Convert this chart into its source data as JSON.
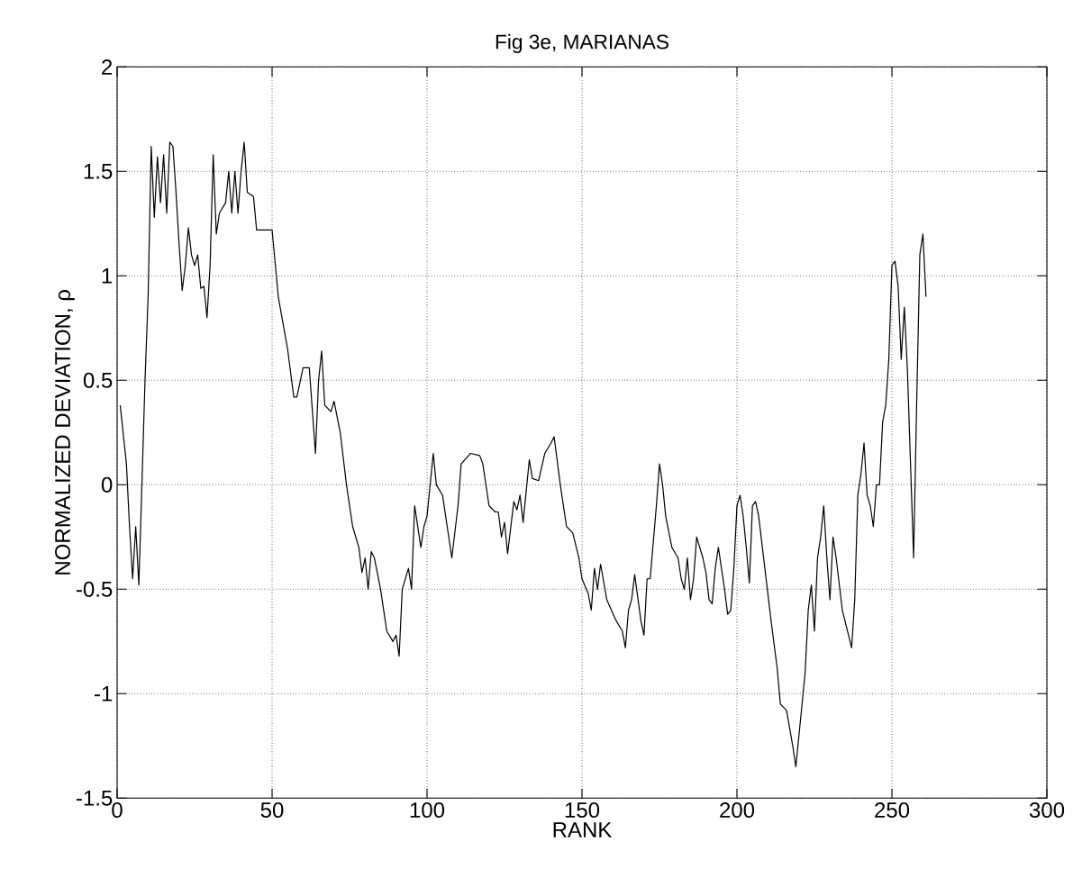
{
  "chart_data": {
    "type": "line",
    "title": "Fig 3e, MARIANAS",
    "xlabel": "RANK",
    "ylabel": "NORMALIZED DEVIATION, ρ",
    "color": "#000000",
    "grid": true,
    "line_style": "solid",
    "xlim": [
      0,
      300
    ],
    "ylim": [
      -1.5,
      2
    ],
    "xticks": [
      0,
      50,
      100,
      150,
      200,
      250,
      300
    ],
    "yticks": [
      -1.5,
      -1,
      -0.5,
      0,
      0.5,
      1,
      1.5,
      2
    ],
    "x": [
      1,
      3,
      4,
      5,
      6,
      7,
      8,
      9,
      10,
      11,
      12,
      13,
      14,
      15,
      16,
      17,
      18,
      19,
      20,
      21,
      22,
      23,
      24,
      25,
      26,
      27,
      28,
      29,
      30,
      31,
      32,
      33,
      35,
      36,
      37,
      38,
      39,
      40,
      41,
      42,
      44,
      45,
      48,
      50,
      52,
      55,
      57,
      58,
      60,
      62,
      64,
      65,
      66,
      67,
      69,
      70,
      72,
      74,
      76,
      78,
      79,
      80,
      81,
      82,
      83,
      85,
      87,
      89,
      90,
      91,
      92,
      94,
      95,
      96,
      98,
      99,
      100,
      102,
      103,
      105,
      107,
      108,
      110,
      111,
      114,
      117,
      118,
      120,
      122,
      123,
      124,
      125,
      126,
      128,
      129,
      130,
      131,
      133,
      134,
      136,
      138,
      140,
      141,
      143,
      145,
      147,
      149,
      150,
      152,
      153,
      154,
      155,
      156,
      158,
      161,
      163,
      164,
      165,
      166,
      167,
      169,
      170,
      171,
      172,
      174,
      175,
      176,
      177,
      179,
      181,
      182,
      183,
      184,
      185,
      186,
      187,
      189,
      190,
      191,
      192,
      193,
      194,
      196,
      197,
      198,
      199,
      200,
      201,
      202,
      203,
      204,
      205,
      206,
      207,
      209,
      211,
      213,
      214,
      216,
      218,
      219,
      220,
      221,
      222,
      223,
      224,
      225,
      226,
      227,
      228,
      229,
      230,
      231,
      232,
      234,
      236,
      237,
      238,
      239,
      240,
      241,
      242,
      243,
      244,
      245,
      246,
      247,
      248,
      249,
      250,
      251,
      252,
      253,
      254,
      255,
      256,
      257,
      258,
      259,
      260,
      261
    ],
    "values": [
      0.38,
      0.1,
      -0.2,
      -0.45,
      -0.2,
      -0.48,
      0,
      0.5,
      0.9,
      1.62,
      1.28,
      1.57,
      1.35,
      1.58,
      1.3,
      1.64,
      1.62,
      1.4,
      1.15,
      0.93,
      1.05,
      1.23,
      1.1,
      1.05,
      1.1,
      0.94,
      0.95,
      0.8,
      1.05,
      1.58,
      1.2,
      1.3,
      1.35,
      1.5,
      1.3,
      1.5,
      1.3,
      1.5,
      1.64,
      1.4,
      1.38,
      1.22,
      1.22,
      1.22,
      0.9,
      0.65,
      0.42,
      0.42,
      0.56,
      0.56,
      0.15,
      0.5,
      0.64,
      0.38,
      0.35,
      0.4,
      0.25,
      0,
      -0.2,
      -0.3,
      -0.42,
      -0.35,
      -0.5,
      -0.32,
      -0.35,
      -0.5,
      -0.7,
      -0.75,
      -0.72,
      -0.82,
      -0.5,
      -0.4,
      -0.5,
      -0.1,
      -0.3,
      -0.2,
      -0.15,
      0.15,
      0,
      -0.05,
      -0.25,
      -0.35,
      -0.1,
      0.1,
      0.15,
      0.14,
      0.1,
      -0.1,
      -0.13,
      -0.13,
      -0.25,
      -0.18,
      -0.33,
      -0.08,
      -0.12,
      -0.05,
      -0.18,
      0.12,
      0.03,
      0.02,
      0.15,
      0.2,
      0.23,
      0,
      -0.2,
      -0.23,
      -0.35,
      -0.45,
      -0.52,
      -0.6,
      -0.4,
      -0.5,
      -0.38,
      -0.55,
      -0.65,
      -0.7,
      -0.78,
      -0.6,
      -0.55,
      -0.43,
      -0.65,
      -0.72,
      -0.45,
      -0.45,
      -0.1,
      0.1,
      0,
      -0.15,
      -0.3,
      -0.35,
      -0.45,
      -0.5,
      -0.35,
      -0.55,
      -0.45,
      -0.25,
      -0.35,
      -0.42,
      -0.55,
      -0.57,
      -0.4,
      -0.3,
      -0.5,
      -0.62,
      -0.6,
      -0.4,
      -0.1,
      -0.05,
      -0.15,
      -0.3,
      -0.47,
      -0.1,
      -0.08,
      -0.15,
      -0.4,
      -0.65,
      -0.88,
      -1.05,
      -1.08,
      -1.25,
      -1.35,
      -1.2,
      -1.05,
      -0.9,
      -0.6,
      -0.48,
      -0.7,
      -0.35,
      -0.25,
      -0.1,
      -0.35,
      -0.55,
      -0.25,
      -0.35,
      -0.6,
      -0.72,
      -0.78,
      -0.55,
      -0.05,
      0.05,
      0.2,
      -0.05,
      -0.1,
      -0.2,
      0,
      0,
      0.3,
      0.38,
      0.6,
      1.05,
      1.07,
      0.95,
      0.6,
      0.85,
      0.55,
      0.1,
      -0.35,
      0.4,
      1.1,
      1.2,
      0.9
    ]
  }
}
